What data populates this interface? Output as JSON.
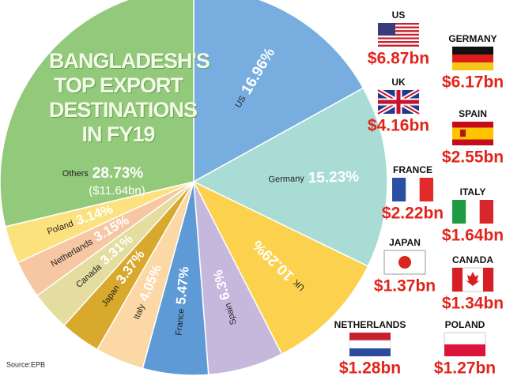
{
  "chart_data": {
    "type": "pie",
    "title": "BANGLADESH'S TOP EXPORT DESTINATIONS IN FY19",
    "categories": [
      "US",
      "Germany",
      "UK",
      "Spain",
      "France",
      "Italy",
      "Japan",
      "Canada",
      "Netherlands",
      "Poland",
      "Others"
    ],
    "values": [
      16.96,
      15.23,
      10.29,
      6.3,
      5.47,
      4.05,
      3.37,
      3.31,
      3.15,
      3.14,
      28.73
    ],
    "value_labels": [
      "16.96%",
      "15.23%",
      "10.29%",
      "6.3%",
      "5.47%",
      "4.05%",
      "3.37%",
      "3.31%",
      "3.15%",
      "3.14%",
      "28.73%"
    ],
    "colors": [
      "#78ade0",
      "#a9dcd4",
      "#fbd14e",
      "#c6b8dd",
      "#5e9bd6",
      "#fbd8a6",
      "#d8a92c",
      "#e3dd9f",
      "#f6c7a2",
      "#fce27e",
      "#93c97a"
    ],
    "dollar_values": {
      "values": [
        6.87,
        6.17,
        4.16,
        2.55,
        2.22,
        1.64,
        1.37,
        1.34,
        1.28,
        1.27,
        11.64
      ],
      "value_labels": [
        "$6.87bn",
        "$6.17bn",
        "$4.16bn",
        "$2.55bn",
        "$2.22bn",
        "$1.64bn",
        "$1.37bn",
        "$1.34bn",
        "$1.28bn",
        "$1.27bn",
        "($11.64bn)"
      ]
    },
    "source": "Source:EPB"
  }
}
